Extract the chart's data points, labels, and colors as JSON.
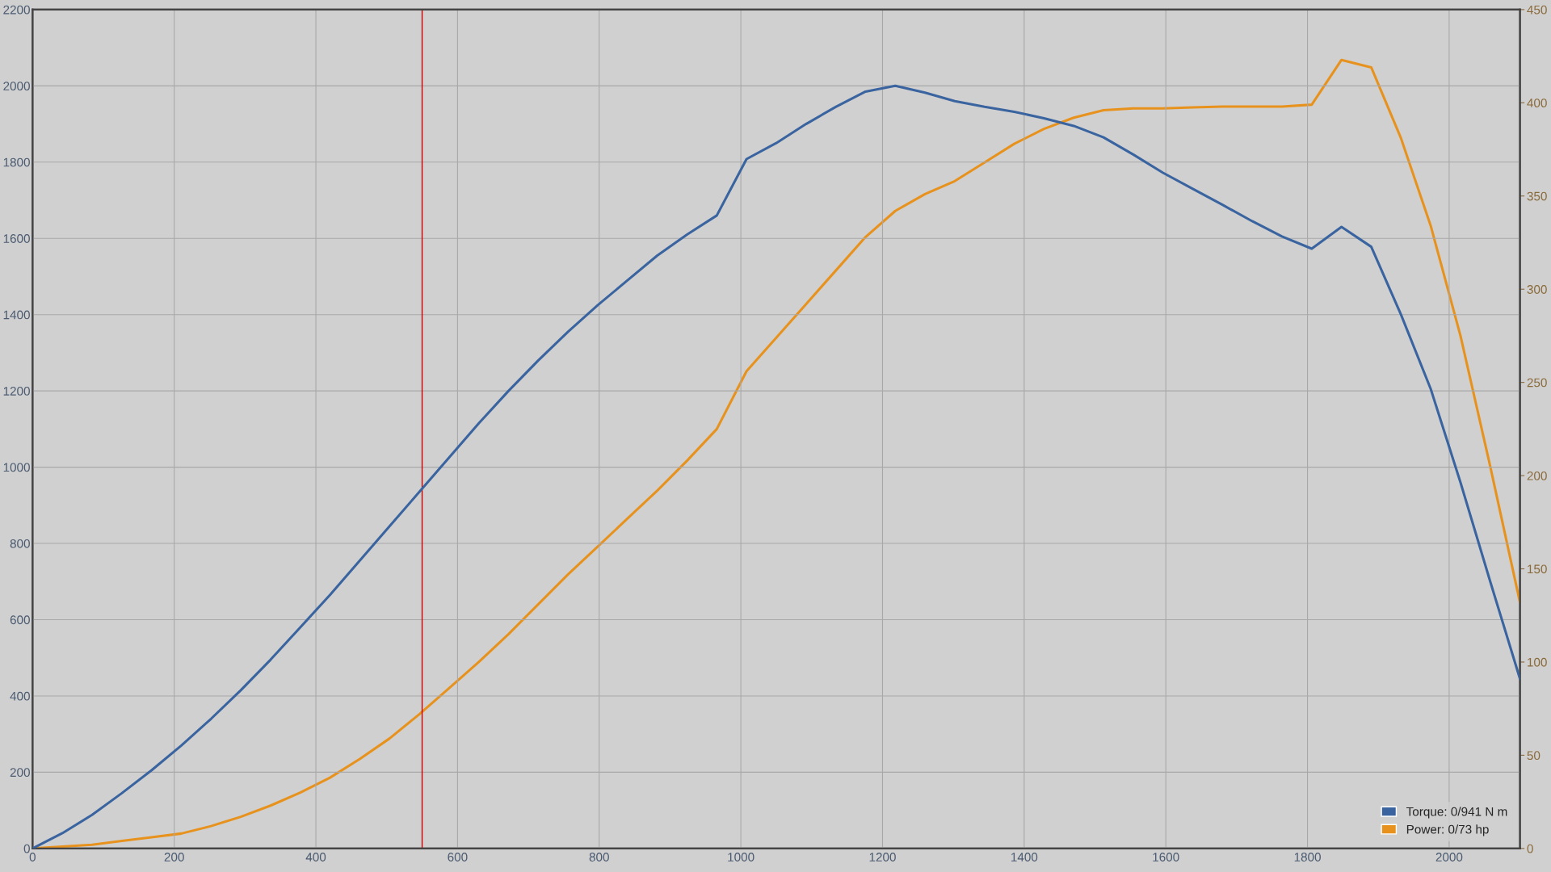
{
  "chart_data": {
    "type": "line",
    "x": [
      0,
      42,
      84,
      126,
      168,
      210,
      252,
      294,
      336,
      378,
      420,
      462,
      504,
      546,
      588,
      630,
      672,
      714,
      756,
      798,
      840,
      882,
      924,
      966,
      1008,
      1050,
      1092,
      1134,
      1176,
      1218,
      1260,
      1302,
      1344,
      1386,
      1428,
      1470,
      1512,
      1554,
      1596,
      1638,
      1680,
      1722,
      1764,
      1806,
      1848,
      1890,
      1932,
      1974,
      2016,
      2058,
      2100
    ],
    "series": [
      {
        "name": "Torque: 0/941 N m",
        "color": "#3a64a0",
        "values": [
          0,
          40,
          88,
          145,
          205,
          270,
          340,
          415,
          495,
          580,
          665,
          755,
          845,
          935,
          1025,
          1115,
          1200,
          1280,
          1355,
          1425,
          1490,
          1555,
          1610,
          1660,
          1808,
          1850,
          1900,
          1945,
          1985,
          2000,
          1982,
          1960,
          1945,
          1932,
          1915,
          1895,
          1865,
          1820,
          1772,
          1730,
          1688,
          1645,
          1605,
          1573,
          1630,
          1578,
          1400,
          1205,
          960,
          700,
          445
        ]
      },
      {
        "name": "Power: 0/73 hp",
        "color": "#e8921e",
        "axis": "y2",
        "values": [
          0,
          1,
          2,
          4,
          6,
          8,
          12,
          17,
          23,
          30,
          38,
          48,
          59,
          72,
          86,
          100,
          115,
          131,
          147,
          162,
          177,
          192,
          208,
          225,
          256,
          274,
          292,
          310,
          328,
          342,
          351,
          358,
          368,
          378,
          386,
          392,
          396,
          397,
          397,
          397.5,
          398,
          398,
          398,
          399,
          423,
          419,
          381,
          334,
          275,
          205,
          132
        ]
      }
    ],
    "xlim": [
      0,
      2100
    ],
    "xticks": [
      0,
      200,
      400,
      600,
      800,
      1000,
      1200,
      1400,
      1600,
      1800,
      2000
    ],
    "ylim": [
      0,
      2200
    ],
    "yticks": [
      0,
      200,
      400,
      600,
      800,
      1000,
      1200,
      1400,
      1600,
      1800,
      2000,
      2200
    ],
    "y2lim": [
      0,
      450
    ],
    "y2ticks": [
      0,
      50,
      100,
      150,
      200,
      250,
      300,
      350,
      400,
      450
    ],
    "ref_lines": [
      {
        "axis": "x",
        "value": 550,
        "color": "#cc0000"
      }
    ],
    "grid": true,
    "legend": "bottom right",
    "marker": "none",
    "line_style": "solid"
  }
}
